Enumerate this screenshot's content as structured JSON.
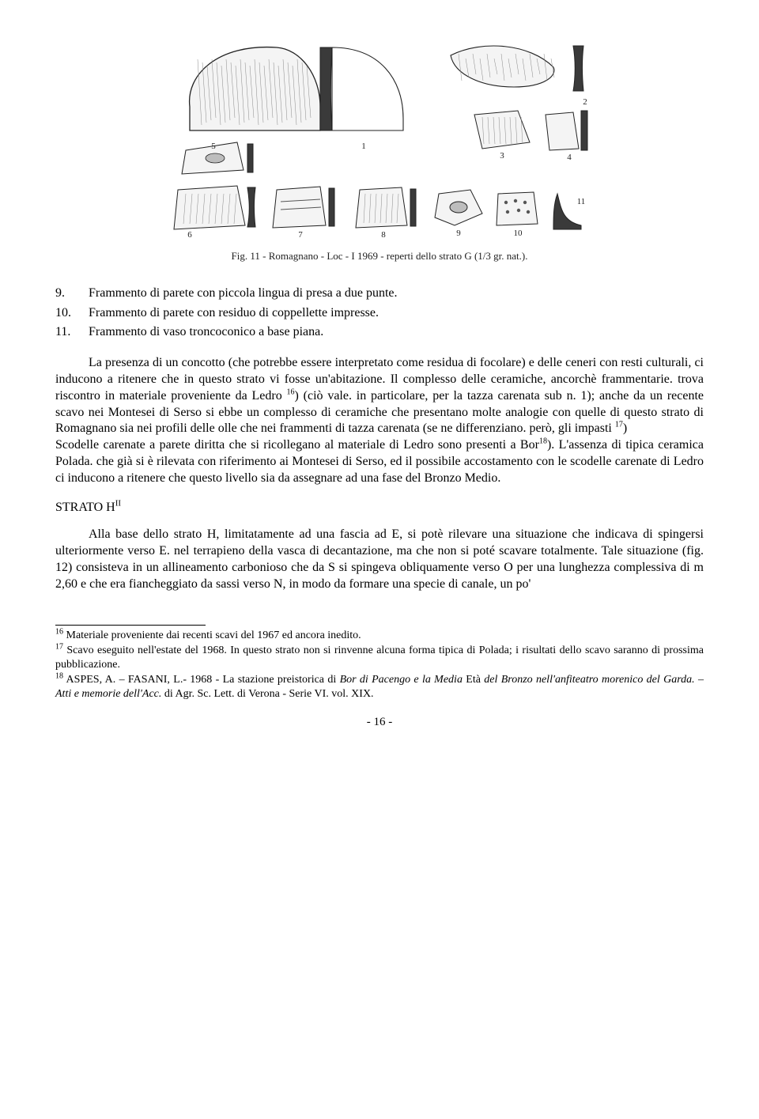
{
  "figure": {
    "caption": "Fig. 11 - Romagnano - Loc - I 1969 - reperti dello strato G (1/3 gr. nat.).",
    "item_labels": [
      "1",
      "2",
      "3",
      "4",
      "5",
      "6",
      "7",
      "8",
      "9",
      "10",
      "11"
    ],
    "stroke": "#222222",
    "fill_dark": "#3a3a3a",
    "fill_mid": "#bdbdbd",
    "fill_light": "#f4f4f4",
    "label_fontsize": 11
  },
  "list": [
    {
      "num": "9.",
      "text": "Frammento di parete con piccola lingua di presa a due punte."
    },
    {
      "num": "10.",
      "text": "Frammento di parete con residuo di coppellette impresse."
    },
    {
      "num": "11.",
      "text": "Frammento di vaso troncoconico a base piana."
    }
  ],
  "para1_html": "La presenza di un concotto (che potrebbe essere interpretato come residua di focolare) e delle ceneri con resti culturali, ci inducono a ritenere che in questo strato vi fosse un'abitazione. Il complesso delle ceramiche, ancorchè frammentarie. trova riscontro in materiale proveniente da Ledro <sup>16</sup>) (ciò vale. in particolare, per la tazza carenata sub n. 1); anche da un recente scavo nei Montesei di Serso si ebbe un complesso di ceramiche che presentano molte analogie con quelle di questo strato di Romagnano sia nei profili delle olle che nei frammenti di tazza carenata (se ne differenziano. però, gli impasti <sup>17</sup>)",
  "para1b_html": "Scodelle carenate a parete diritta che si ricollegano al materiale di Ledro sono presenti a Bor<sup>18</sup>). L'assenza di tipica ceramica Polada. che già si è rilevata con riferimento ai Montesei di Serso, ed il possibile accostamento con le scodelle carenate di Ledro ci inducono a ritenere che questo livello sia da assegnare ad una fase del Bronzo Medio.",
  "section_head_html": "STRATO H<sup>II</sup>",
  "para2_html": "Alla base dello strato H, limitatamente ad una fascia ad E, si potè rilevare una situazione che indicava di spingersi ulteriormente verso E. nel terrapieno della vasca di decantazione, ma che non si poté scavare totalmente. Tale situazione (fig. 12) consisteva in un allineamento carbonioso che da S si spingeva obliquamente verso O per una lunghezza complessiva di m 2,60 e che era fiancheggiato da sassi verso N, in modo da formare una specie di canale, un po'",
  "footnotes": [
    "<sup>16</sup> Materiale proveniente dai recenti scavi del 1967 ed ancora inedito.",
    "<sup>17</sup> Scavo eseguito nell'estate del 1968. In questo strato non si rinvenne alcuna forma tipica di Polada; i risultati dello scavo saranno di prossima pubblicazione.",
    "<sup>18</sup> ASPES, A. – FASANI, L.- 1968 - La stazione preistorica di <em>Bor di Pacengo e la Media</em> Età <em>del Bronzo nell'anfiteatro morenico del Garda. – Atti e memorie dell'Acc.</em> di Agr. Sc. Lett. di Verona - Serie VI. vol. XIX."
  ],
  "page_number": "- 16 -"
}
